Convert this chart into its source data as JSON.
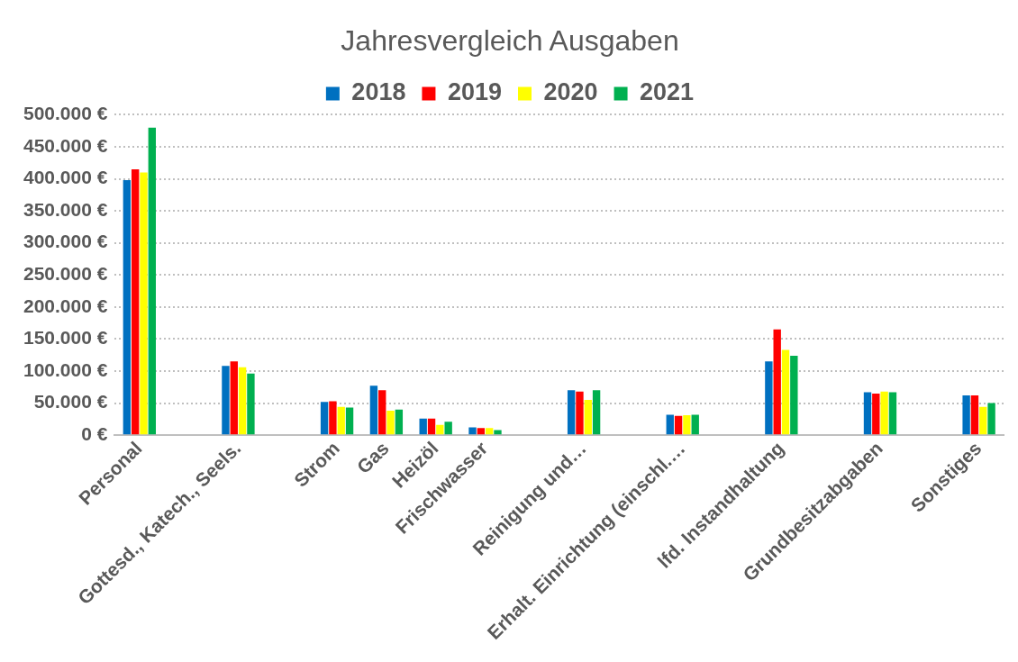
{
  "chart_data": {
    "type": "bar",
    "title": "Jahresvergleich Ausgaben",
    "categories": [
      "Personal",
      null,
      "Gottesd., Katech., Seels.",
      null,
      "Strom",
      "Gas",
      "Heizöl",
      "Frischwasser",
      null,
      "Reinigung und…",
      null,
      "Erhalt. Einrichtung (einschl.…",
      null,
      "lfd. Instandhaltung",
      null,
      "Grundbesitzabgaben",
      null,
      "Sonstiges"
    ],
    "series": [
      {
        "name": "2018",
        "color": "#0070c0",
        "values": [
          398000,
          null,
          108000,
          null,
          52000,
          77000,
          26000,
          12000,
          null,
          70000,
          null,
          32000,
          null,
          115000,
          null,
          67000,
          null,
          62000
        ]
      },
      {
        "name": "2019",
        "color": "#ff0000",
        "values": [
          415000,
          null,
          115000,
          null,
          53000,
          70000,
          26000,
          11000,
          null,
          68000,
          null,
          30000,
          null,
          165000,
          null,
          65000,
          null,
          62000
        ]
      },
      {
        "name": "2020",
        "color": "#ffff00",
        "values": [
          410000,
          null,
          106000,
          null,
          44000,
          38000,
          16000,
          11000,
          null,
          55000,
          null,
          31000,
          null,
          133000,
          null,
          68000,
          null,
          44000
        ]
      },
      {
        "name": "2021",
        "color": "#00b050",
        "values": [
          480000,
          null,
          96000,
          null,
          43000,
          40000,
          21000,
          8000,
          null,
          70000,
          null,
          32000,
          null,
          124000,
          null,
          67000,
          null,
          50000
        ]
      }
    ],
    "ylim": [
      0,
      500000
    ],
    "yticks": [
      {
        "value": 0,
        "label": "0 €"
      },
      {
        "value": 50000,
        "label": "50.000 €"
      },
      {
        "value": 100000,
        "label": "100.000 €"
      },
      {
        "value": 150000,
        "label": "150.000 €"
      },
      {
        "value": 200000,
        "label": "200.000 €"
      },
      {
        "value": 250000,
        "label": "250.000 €"
      },
      {
        "value": 300000,
        "label": "300.000 €"
      },
      {
        "value": 350000,
        "label": "350.000 €"
      },
      {
        "value": 400000,
        "label": "400.000 €"
      },
      {
        "value": 450000,
        "label": "450.000 €"
      },
      {
        "value": 500000,
        "label": "500.000 €"
      }
    ],
    "grid": "y",
    "legend": "top"
  }
}
